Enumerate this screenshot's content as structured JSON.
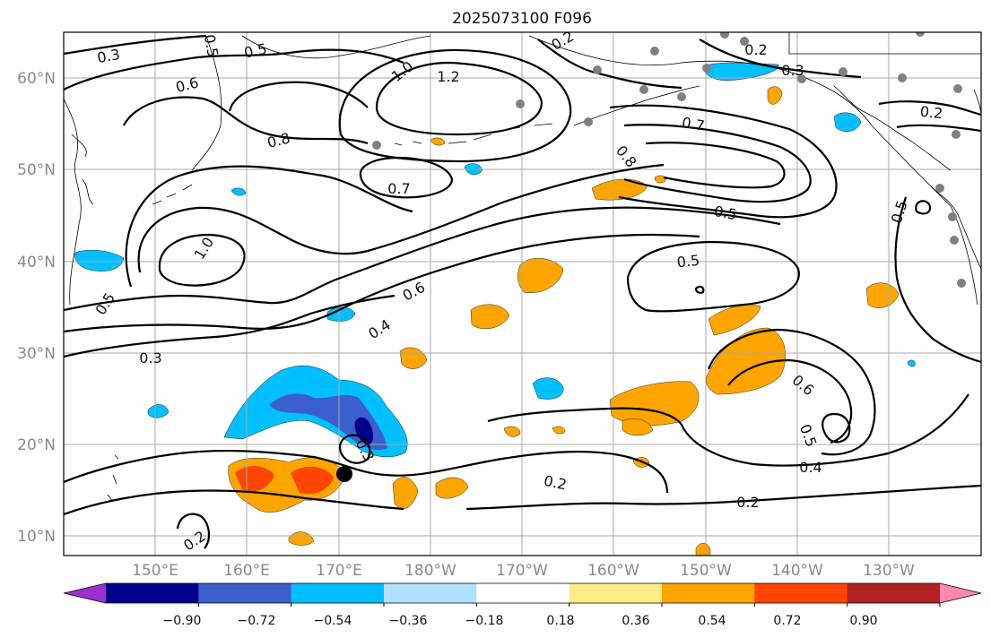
{
  "title": "2025073100 F096",
  "lat_labels": [
    "60°N",
    "50°N",
    "40°N",
    "30°N",
    "20°N",
    "10°N"
  ],
  "lon_labels": [
    "150°E",
    "160°E",
    "170°E",
    "180°W",
    "170°W",
    "160°W",
    "150°W",
    "140°W",
    "130°W"
  ],
  "contour_labels": [
    "0.3",
    "0.5",
    "0.5",
    "0.6",
    "1.0",
    "1.2",
    "0.2",
    "0.3",
    "0.2",
    "0.8",
    "0.7",
    "0.7",
    "0.8",
    "0.5",
    "0.5",
    "1.0",
    "0.5",
    "0.6",
    "0.4",
    "0.3",
    "0.3",
    "0.2",
    "0.2",
    "0.6",
    "0.5",
    "0.4",
    "0.2",
    "0.5",
    "0.2"
  ],
  "colorbar": {
    "tick_labels": [
      "−0.90",
      "−0.72",
      "−0.54",
      "−0.36",
      "−0.18",
      "0.18",
      "0.36",
      "0.54",
      "0.72",
      "0.90"
    ],
    "colors": [
      "#9b30d0",
      "#00008b",
      "#3a5fcd",
      "#00bfff",
      "#b0e0ff",
      "#ffffff",
      "#ffec8b",
      "#ffa500",
      "#ff4500",
      "#b22222",
      "#ff88b0"
    ]
  }
}
